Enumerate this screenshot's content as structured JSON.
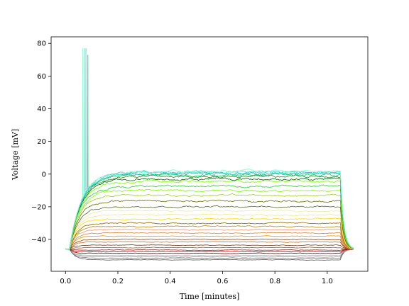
{
  "chart_data": {
    "type": "line",
    "xlabel": "Time [minutes]",
    "ylabel": "Voltage [mV]",
    "xlim": [
      -0.055,
      1.155
    ],
    "ylim": [
      -59.5,
      84
    ],
    "xticks": [
      0.0,
      0.2,
      0.4,
      0.6,
      0.8,
      1.0
    ],
    "xtick_labels": [
      "0.0",
      "0.2",
      "0.4",
      "0.6",
      "0.8",
      "1.0"
    ],
    "yticks": [
      -40,
      -20,
      0,
      20,
      40,
      60,
      80
    ],
    "ytick_labels": [
      "−40",
      "−20",
      "0",
      "20",
      "40",
      "60",
      "80"
    ],
    "grid": false,
    "legend": "none",
    "stimulus": {
      "onset": 0.015,
      "offset": 1.05,
      "baseline": -46
    },
    "series": [
      {
        "color": "#5a5a5a",
        "plateau": -52.5
      },
      {
        "color": "#7a7a7a",
        "plateau": -51.5
      },
      {
        "color": "#999999",
        "plateau": -50.7
      },
      {
        "color": "#b3b3b3",
        "plateau": -49.8
      },
      {
        "color": "#8b0000",
        "plateau": -48.5
      },
      {
        "color": "#cc0000",
        "plateau": -47.5
      },
      {
        "color": "#7b2d26",
        "plateau": -46.5
      },
      {
        "color": "#a0522d",
        "plateau": -45.0
      },
      {
        "color": "#6b3a1f",
        "plateau": -43.5
      },
      {
        "color": "#d2691e",
        "plateau": -41.5
      },
      {
        "color": "#8b4513",
        "plateau": -40.0
      },
      {
        "color": "#ff8c00",
        "plateau": -38.0
      },
      {
        "color": "#cd853f",
        "plateau": -36.0
      },
      {
        "color": "#e9967a",
        "plateau": -34.0
      },
      {
        "color": "#b8860b",
        "plateau": -32.0
      },
      {
        "color": "#8b6508",
        "plateau": -30.0
      },
      {
        "color": "#ffd700",
        "plateau": -27.5
      },
      {
        "color": "#f0e68c",
        "plateau": -25.0
      },
      {
        "color": "#eee8aa",
        "plateau": -22.5
      },
      {
        "color": "#556b2f",
        "plateau": -20.0
      },
      {
        "color": "#6b6b00",
        "plateau": -16.5
      },
      {
        "color": "#9acd32",
        "plateau": -13.0
      },
      {
        "color": "#7cfc00",
        "plateau": -10.0
      },
      {
        "color": "#32cd32",
        "plateau": -7.5
      },
      {
        "color": "#7fff00",
        "plateau": -4.5
      },
      {
        "color": "#006400",
        "plateau": -3.0
      },
      {
        "color": "#228b22",
        "plateau": -1.5
      },
      {
        "color": "#00c853",
        "plateau": -0.5,
        "spike_at": 0.085,
        "spike_peak": 73
      },
      {
        "color": "#20b2aa",
        "plateau": 0.2
      },
      {
        "color": "#40e0d0",
        "plateau": 0.8,
        "spike_at": 0.072,
        "spike_peak": 77
      },
      {
        "color": "#48d1cc",
        "plateau": 1.2,
        "spike_at": 0.078,
        "spike_peak": 77
      },
      {
        "color": "#7fffd4",
        "plateau": 1.6,
        "spike_at": 0.065,
        "spike_peak": 77
      }
    ]
  }
}
